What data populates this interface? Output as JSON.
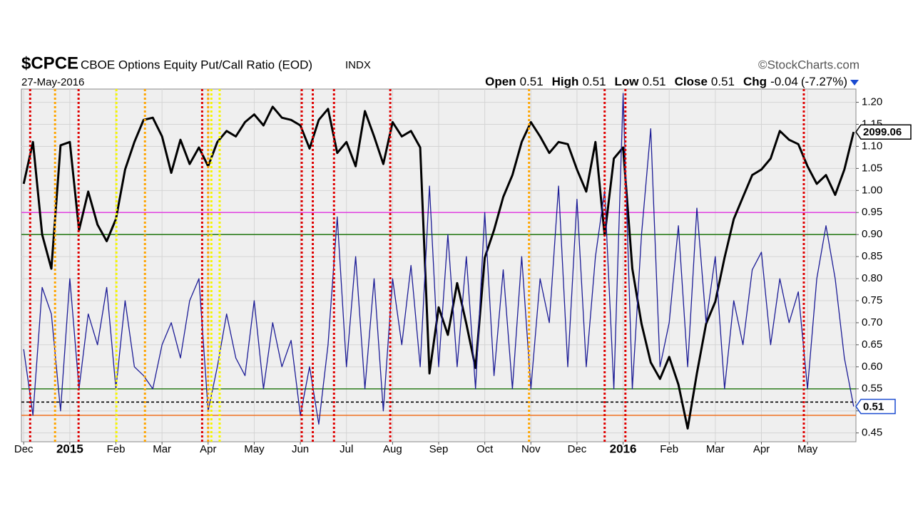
{
  "chart_data": {
    "type": "line",
    "symbol": "$CPCE",
    "title": "CBOE Options Equity Put/Call Ratio (EOD)",
    "exchange": "INDX",
    "source": "©StockCharts.com",
    "date": "27-May-2016",
    "quote": [
      {
        "label": "Open",
        "value": 0.51
      },
      {
        "label": "High",
        "value": 0.51
      },
      {
        "label": "Low",
        "value": 0.51
      },
      {
        "label": "Close",
        "value": 0.51
      },
      {
        "label": "Chg",
        "value": -0.04,
        "pct_label": "(-7.27%)"
      }
    ],
    "xlim": [
      -0.05,
      18.05
    ],
    "xticks": [
      {
        "value": 0,
        "label": "Dec"
      },
      {
        "value": 1,
        "label": "2015"
      },
      {
        "value": 2,
        "label": "Feb"
      },
      {
        "value": 3,
        "label": "Mar"
      },
      {
        "value": 4,
        "label": "Apr"
      },
      {
        "value": 5,
        "label": "May"
      },
      {
        "value": 6,
        "label": "Jun"
      },
      {
        "value": 7,
        "label": "Jul"
      },
      {
        "value": 8,
        "label": "Aug"
      },
      {
        "value": 9,
        "label": "Sep"
      },
      {
        "value": 10,
        "label": "Oct"
      },
      {
        "value": 11,
        "label": "Nov"
      },
      {
        "value": 12,
        "label": "Dec"
      },
      {
        "value": 13,
        "label": "2016"
      },
      {
        "value": 14,
        "label": "Feb"
      },
      {
        "value": 15,
        "label": "Mar"
      },
      {
        "value": 16,
        "label": "Apr"
      },
      {
        "value": 17,
        "label": "May"
      }
    ],
    "ylim": [
      0.43,
      1.23
    ],
    "yticks": [
      {
        "value": 1.2,
        "label": "1.20"
      },
      1.15,
      {
        "value": 1.1,
        "label": "1.10"
      },
      1.05,
      {
        "value": 1.0,
        "label": "1.00"
      },
      0.95,
      {
        "value": 0.9,
        "label": "0.90"
      },
      0.85,
      {
        "value": 0.8,
        "label": "0.80"
      },
      0.75,
      {
        "value": 0.7,
        "label": "0.70"
      },
      0.65,
      {
        "value": 0.6,
        "label": "0.60"
      },
      0.55,
      {
        "value": 0.5,
        "label": "0.50"
      },
      0.45
    ],
    "y2lim": [
      1818,
      2138
    ],
    "grid": true,
    "x": [
      0,
      0.2,
      0.4,
      0.6,
      0.8,
      1,
      1.2,
      1.4,
      1.6,
      1.8,
      2,
      2.2,
      2.4,
      2.6,
      2.8,
      3,
      3.2,
      3.4,
      3.6,
      3.8,
      4,
      4.2,
      4.4,
      4.6,
      4.8,
      5,
      5.2,
      5.4,
      5.6,
      5.8,
      6,
      6.2,
      6.4,
      6.6,
      6.8,
      7,
      7.2,
      7.4,
      7.6,
      7.8,
      8,
      8.2,
      8.4,
      8.6,
      8.8,
      9,
      9.2,
      9.4,
      9.6,
      9.8,
      10,
      10.2,
      10.4,
      10.6,
      10.8,
      11,
      11.2,
      11.4,
      11.6,
      11.8,
      12,
      12.2,
      12.4,
      12.6,
      12.8,
      13,
      13.2,
      13.4,
      13.6,
      13.8,
      14,
      14.2,
      14.4,
      14.6,
      14.8,
      15,
      15.2,
      15.4,
      15.6,
      15.8,
      16,
      16.2,
      16.4,
      16.6,
      16.8,
      17,
      17.2,
      17.4,
      17.6,
      17.8,
      18
    ],
    "series": [
      {
        "name": "$CPCE",
        "color": "#1c1c96",
        "width": 1.3,
        "values": [
          0.64,
          0.49,
          0.78,
          0.72,
          0.5,
          0.8,
          0.55,
          0.72,
          0.65,
          0.78,
          0.55,
          0.75,
          0.6,
          0.58,
          0.55,
          0.65,
          0.7,
          0.62,
          0.75,
          0.8,
          0.5,
          0.6,
          0.72,
          0.62,
          0.58,
          0.75,
          0.55,
          0.7,
          0.6,
          0.66,
          0.49,
          0.6,
          0.47,
          0.65,
          0.94,
          0.6,
          0.85,
          0.55,
          0.8,
          0.5,
          0.8,
          0.65,
          0.83,
          0.6,
          1.01,
          0.6,
          0.9,
          0.6,
          0.85,
          0.55,
          0.95,
          0.58,
          0.82,
          0.55,
          0.85,
          0.55,
          0.8,
          0.7,
          1.01,
          0.6,
          0.98,
          0.6,
          0.85,
          1.0,
          0.55,
          1.22,
          0.55,
          0.9,
          1.14,
          0.6,
          0.7,
          0.92,
          0.6,
          0.96,
          0.7,
          0.85,
          0.55,
          0.75,
          0.65,
          0.82,
          0.86,
          0.65,
          0.8,
          0.7,
          0.77,
          0.55,
          0.8,
          0.92,
          0.8,
          0.62,
          0.51
        ]
      },
      {
        "name": "$SPX",
        "color": "#000000",
        "width": 3,
        "axis": "y2",
        "values": [
          2052,
          2090,
          2006,
          1975,
          2087,
          2090,
          2010,
          2045,
          2015,
          2000,
          2020,
          2065,
          2090,
          2110,
          2112,
          2095,
          2062,
          2092,
          2070,
          2085,
          2068,
          2090,
          2100,
          2095,
          2108,
          2115,
          2105,
          2122,
          2112,
          2110,
          2105,
          2084,
          2110,
          2120,
          2080,
          2090,
          2068,
          2118,
          2095,
          2070,
          2108,
          2095,
          2100,
          2085,
          1880,
          1940,
          1915,
          1962,
          1925,
          1885,
          1985,
          2010,
          2040,
          2060,
          2090,
          2108,
          2095,
          2080,
          2090,
          2088,
          2065,
          2045,
          2090,
          2005,
          2075,
          2085,
          1975,
          1925,
          1890,
          1875,
          1895,
          1870,
          1830,
          1880,
          1925,
          1945,
          1985,
          2020,
          2040,
          2060,
          2065,
          2075,
          2100,
          2092,
          2088,
          2068,
          2052,
          2060,
          2042,
          2065,
          2099.06
        ]
      }
    ],
    "hlines": [
      {
        "value": 0.95,
        "color": "#e040e0"
      },
      {
        "value": 0.9,
        "color": "#2e7d1e"
      },
      {
        "value": 0.55,
        "color": "#2e7d1e"
      },
      {
        "value": 0.52,
        "color": "#000000",
        "dash": true
      },
      {
        "value": 0.49,
        "color": "#f07020"
      }
    ],
    "vlines": [
      {
        "x": 0.14,
        "color": "#e00000"
      },
      {
        "x": 1.19,
        "color": "#e00000"
      },
      {
        "x": 3.87,
        "color": "#e00000"
      },
      {
        "x": 6.03,
        "color": "#e00000"
      },
      {
        "x": 6.27,
        "color": "#e00000"
      },
      {
        "x": 6.73,
        "color": "#e00000"
      },
      {
        "x": 7.95,
        "color": "#e00000"
      },
      {
        "x": 12.6,
        "color": "#e00000"
      },
      {
        "x": 13.05,
        "color": "#e00000"
      },
      {
        "x": 16.92,
        "color": "#e00000"
      },
      {
        "x": 0.68,
        "color": "#ffa500"
      },
      {
        "x": 2.63,
        "color": "#ffa500"
      },
      {
        "x": 4.0,
        "color": "#ffa500"
      },
      {
        "x": 10.96,
        "color": "#ffa500"
      },
      {
        "x": 2.01,
        "color": "#f5f500"
      },
      {
        "x": 4.07,
        "color": "#f5f500"
      },
      {
        "x": 4.25,
        "color": "#f5f500"
      }
    ]
  }
}
